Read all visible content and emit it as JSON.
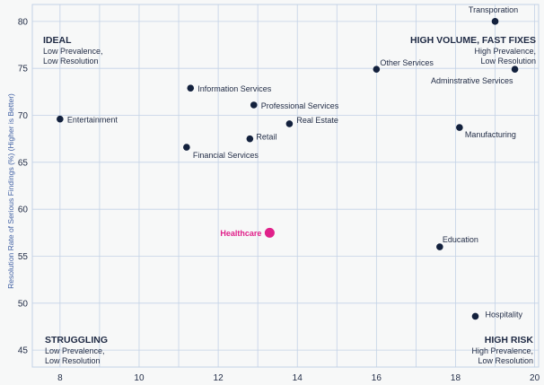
{
  "chart_data": {
    "type": "scatter",
    "ylabel": "Resolution Rate of Serious Findings (%)  (Higher is Better)",
    "xlabel": "",
    "xlim": [
      7.3,
      20.1
    ],
    "ylim": [
      43.2,
      81.8
    ],
    "xticks": [
      8,
      10,
      12,
      14,
      16,
      18,
      20
    ],
    "yticks": [
      45,
      50,
      55,
      60,
      65,
      70,
      75,
      80
    ],
    "grid": true,
    "points": [
      {
        "label": "Transporation",
        "x": 19.0,
        "y": 80.0,
        "highlight": false
      },
      {
        "label": "Other Services",
        "x": 16.0,
        "y": 74.9,
        "highlight": false
      },
      {
        "label": "Adminstrative Services",
        "x": 19.5,
        "y": 74.9,
        "highlight": false
      },
      {
        "label": "Information Services",
        "x": 11.3,
        "y": 72.9,
        "highlight": false
      },
      {
        "label": "Professional Services",
        "x": 12.9,
        "y": 71.1,
        "highlight": false
      },
      {
        "label": "Entertainment",
        "x": 8.0,
        "y": 69.6,
        "highlight": false
      },
      {
        "label": "Real Estate",
        "x": 13.8,
        "y": 69.1,
        "highlight": false
      },
      {
        "label": "Manufacturing",
        "x": 18.1,
        "y": 68.7,
        "highlight": false
      },
      {
        "label": "Retail",
        "x": 12.8,
        "y": 67.5,
        "highlight": false
      },
      {
        "label": "Financial Services",
        "x": 11.2,
        "y": 66.6,
        "highlight": false
      },
      {
        "label": "Healthcare",
        "x": 13.3,
        "y": 57.5,
        "highlight": true
      },
      {
        "label": "Education",
        "x": 17.6,
        "y": 56.0,
        "highlight": false
      },
      {
        "label": "Hospitality",
        "x": 18.5,
        "y": 48.6,
        "highlight": false
      }
    ],
    "quadrants": [
      {
        "position": "top-left",
        "title": "IDEAL",
        "lines": [
          "Low Prevalence,",
          "Low Resolution"
        ]
      },
      {
        "position": "top-right",
        "title": "HIGH VOLUME, FAST FIXES",
        "lines": [
          "High Prevalence,",
          "Low Resolution"
        ]
      },
      {
        "position": "bottom-left",
        "title": "STRUGGLING",
        "lines": [
          "Low Prevalence,",
          "Low Resolution"
        ]
      },
      {
        "position": "bottom-right",
        "title": "HIGH RISK",
        "lines": [
          "High Prevalence,",
          "Low Resolution"
        ]
      }
    ],
    "colors": {
      "point": "#13213d",
      "highlight": "#e0218a",
      "grid": "#c3d2e6",
      "background": "#f7f8f8"
    }
  }
}
